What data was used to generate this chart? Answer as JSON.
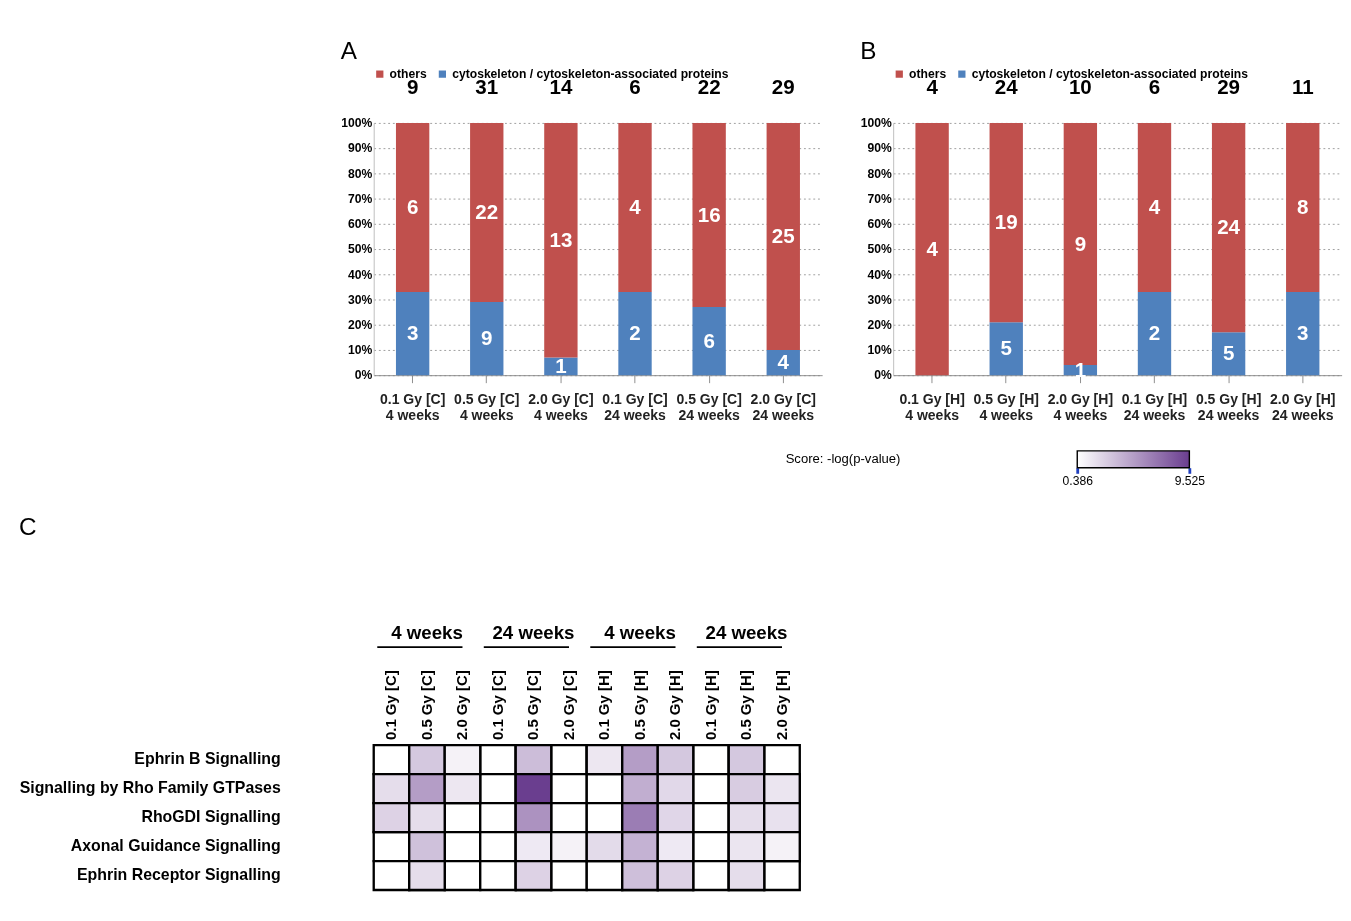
{
  "chart_data": [
    {
      "type": "bar",
      "title": "A",
      "categories": [
        "0.1 Gy [C]\n4 weeks",
        "0.5 Gy [C]\n4 weeks",
        "2.0 Gy [C]\n4 weeks",
        "0.1 Gy [C]\n24 weeks",
        "0.5 Gy [C]\n24 weeks",
        "2.0 Gy [C]\n24 weeks"
      ],
      "stacked": true,
      "series": [
        {
          "name": "cytoskeleton / cytoskeleton-associated proteins",
          "color": "#4f81bd",
          "values": [
            33,
            29,
            7,
            33,
            27,
            10
          ]
        },
        {
          "name": "others",
          "color": "#c0504d",
          "values": [
            67,
            71,
            93,
            67,
            73,
            90
          ]
        }
      ],
      "annotations": [
        "3",
        "9",
        "1",
        "2",
        "6",
        "4",
        "6",
        "22",
        "13",
        "4",
        "16",
        "25",
        "9",
        "31",
        "14",
        "6",
        "22",
        "29"
      ],
      "ylim": [
        0,
        100
      ],
      "yticks": [
        {
          "value": 0,
          "label": "0%"
        },
        {
          "value": 10,
          "label": "10%"
        },
        {
          "value": 20,
          "label": "20%"
        },
        {
          "value": 30,
          "label": "30%"
        },
        {
          "value": 40,
          "label": "40%"
        },
        {
          "value": 50,
          "label": "50%"
        },
        {
          "value": 60,
          "label": "60%"
        },
        {
          "value": 70,
          "label": "70%"
        },
        {
          "value": 80,
          "label": "80%"
        },
        {
          "value": 90,
          "label": "90%"
        },
        {
          "value": 100,
          "label": "100%"
        }
      ],
      "grid": "y",
      "legend": "top"
    },
    {
      "type": "bar",
      "title": "B",
      "categories": [
        "0.1 Gy [H]\n4 weeks",
        "0.5 Gy [H]\n4 weeks",
        "2.0 Gy [H]\n4 weeks",
        "0.1 Gy [H]\n24 weeks",
        "0.5 Gy [H]\n24 weeks",
        "2.0 Gy [H]\n24 weeks"
      ],
      "stacked": true,
      "series": [
        {
          "name": "cytoskeleton / cytoskeleton-associated proteins",
          "color": "#4f81bd",
          "values": [
            0,
            21,
            4,
            33,
            17,
            33
          ]
        },
        {
          "name": "others",
          "color": "#c0504d",
          "values": [
            100,
            79,
            96,
            67,
            83,
            67
          ]
        }
      ],
      "annotations": [
        "5",
        "1",
        "2",
        "5",
        "3",
        "4",
        "19",
        "9",
        "4",
        "24",
        "8",
        "4",
        "24",
        "10",
        "6",
        "29",
        "11"
      ],
      "ylim": [
        0,
        100
      ],
      "yticks": [
        {
          "value": 0,
          "label": "0%"
        },
        {
          "value": 10,
          "label": "10%"
        },
        {
          "value": 20,
          "label": "20%"
        },
        {
          "value": 30,
          "label": "30%"
        },
        {
          "value": 40,
          "label": "40%"
        },
        {
          "value": 50,
          "label": "50%"
        },
        {
          "value": 60,
          "label": "60%"
        },
        {
          "value": 70,
          "label": "70%"
        },
        {
          "value": 80,
          "label": "80%"
        },
        {
          "value": 90,
          "label": "90%"
        },
        {
          "value": 100,
          "label": "100%"
        }
      ],
      "grid": "y",
      "legend": "top"
    },
    {
      "type": "heatmap",
      "title": "C",
      "categories": [
        "0.1 Gy [C]",
        "0.5 Gy [C]",
        "2.0 Gy [C]",
        "0.1 Gy [C]",
        "0.5 Gy [C]",
        "2.0 Gy [C]",
        "0.1 Gy [H]",
        "0.5 Gy [H]",
        "2.0 Gy [H]",
        "0.1 Gy [H]",
        "0.5 Gy [H]",
        "2.0 Gy [H]"
      ],
      "y_categories": [
        "Ephrin B Signalling",
        "Signalling by Rho Family GTPases",
        "RhoGDI Signalling",
        "Axonal Guidance Signalling",
        "Ephrin Receptor Signalling"
      ],
      "cells": [
        [
          null,
          3,
          1,
          null,
          3.5,
          null,
          1.5,
          5,
          3,
          null,
          3,
          null
        ],
        [
          2,
          5,
          1.5,
          null,
          9.5,
          null,
          null,
          4.2,
          2.2,
          null,
          2.8,
          1.6
        ],
        [
          2.5,
          2,
          null,
          null,
          5.5,
          null,
          null,
          6.5,
          2.3,
          null,
          2,
          1.8
        ],
        [
          null,
          3.3,
          null,
          null,
          1.4,
          1,
          2.1,
          4,
          1.4,
          null,
          1.6,
          1
        ],
        [
          null,
          2,
          null,
          null,
          2.5,
          null,
          null,
          3.4,
          2.5,
          null,
          2,
          null
        ]
      ],
      "clim": [
        0.386,
        9.525
      ],
      "cticks": [
        0.386,
        9.525
      ],
      "clabel": "Score: -log(p-value)",
      "annotations": [
        "4 weeks",
        "24 weeks",
        "4 weeks",
        "24 weeks"
      ]
    }
  ]
}
